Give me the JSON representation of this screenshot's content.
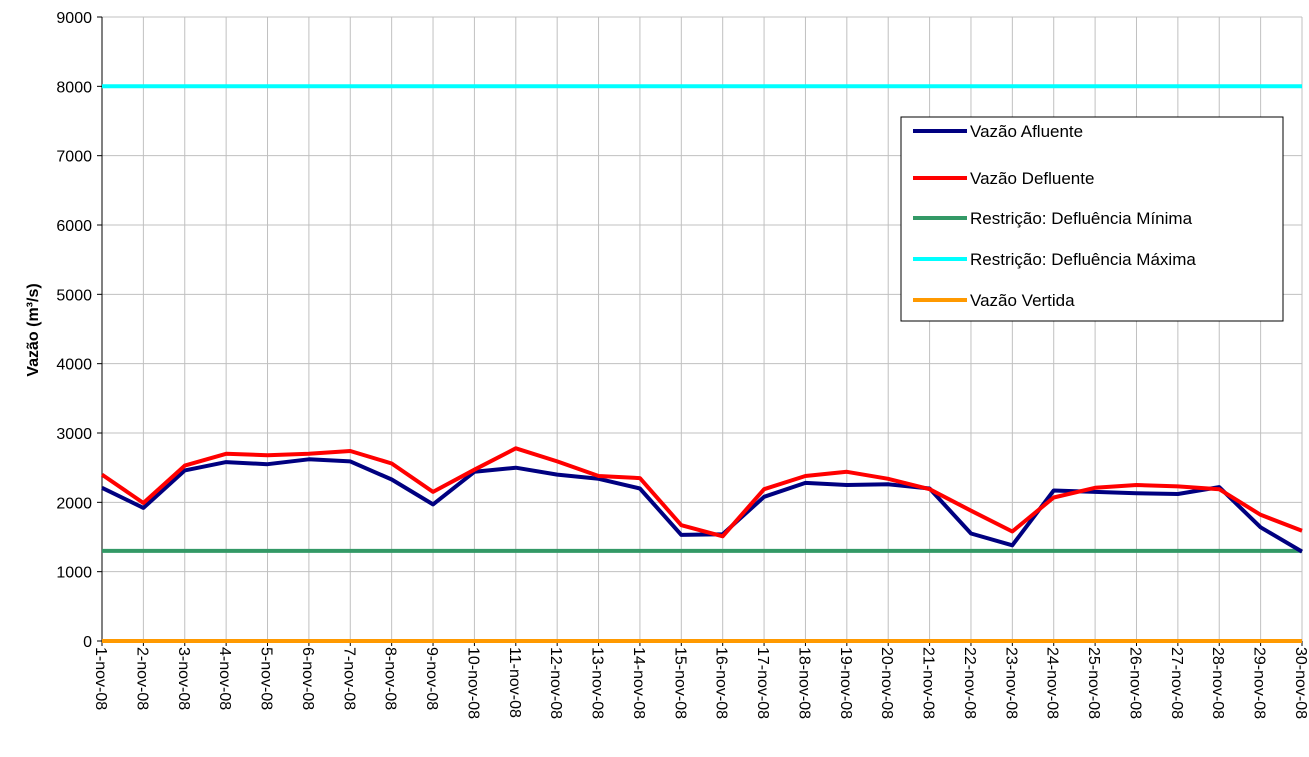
{
  "chart_data": {
    "type": "line",
    "title": "",
    "xlabel": "",
    "ylabel": "Vazão (m³/s)",
    "ylim": [
      0,
      9000
    ],
    "yticks": [
      "0",
      "1000",
      "2000",
      "3000",
      "4000",
      "5000",
      "6000",
      "7000",
      "8000",
      "9000"
    ],
    "grid": true,
    "legend_position": "right",
    "categories": [
      "1-nov-08",
      "2-nov-08",
      "3-nov-08",
      "4-nov-08",
      "5-nov-08",
      "6-nov-08",
      "7-nov-08",
      "8-nov-08",
      "9-nov-08",
      "10-nov-08",
      "11-nov-08",
      "12-nov-08",
      "13-nov-08",
      "14-nov-08",
      "15-nov-08",
      "16-nov-08",
      "17-nov-08",
      "18-nov-08",
      "19-nov-08",
      "20-nov-08",
      "21-nov-08",
      "22-nov-08",
      "23-nov-08",
      "24-nov-08",
      "25-nov-08",
      "26-nov-08",
      "27-nov-08",
      "28-nov-08",
      "29-nov-08",
      "30-nov-08"
    ],
    "series": [
      {
        "name": "Vazão Afluente",
        "color": "#000080",
        "values": [
          2210,
          1920,
          2460,
          2580,
          2550,
          2620,
          2590,
          2330,
          1970,
          2440,
          2500,
          2400,
          2340,
          2200,
          1530,
          1540,
          2080,
          2280,
          2250,
          2260,
          2200,
          1550,
          1380,
          2170,
          2150,
          2130,
          2120,
          2220,
          1640,
          1290
        ]
      },
      {
        "name": "Vazão Defluente",
        "color": "#ff0000",
        "values": [
          2400,
          1990,
          2530,
          2700,
          2680,
          2700,
          2740,
          2560,
          2150,
          2470,
          2780,
          2590,
          2380,
          2350,
          1670,
          1510,
          2190,
          2380,
          2440,
          2340,
          2190,
          1880,
          1580,
          2070,
          2210,
          2250,
          2230,
          2190,
          1820,
          1590
        ]
      },
      {
        "name": "Restrição: Defluência Mínima",
        "color": "#339966",
        "values": [
          1300,
          1300,
          1300,
          1300,
          1300,
          1300,
          1300,
          1300,
          1300,
          1300,
          1300,
          1300,
          1300,
          1300,
          1300,
          1300,
          1300,
          1300,
          1300,
          1300,
          1300,
          1300,
          1300,
          1300,
          1300,
          1300,
          1300,
          1300,
          1300,
          1300
        ]
      },
      {
        "name": "Restrição: Defluência Máxima",
        "color": "#00ffff",
        "values": [
          8000,
          8000,
          8000,
          8000,
          8000,
          8000,
          8000,
          8000,
          8000,
          8000,
          8000,
          8000,
          8000,
          8000,
          8000,
          8000,
          8000,
          8000,
          8000,
          8000,
          8000,
          8000,
          8000,
          8000,
          8000,
          8000,
          8000,
          8000,
          8000,
          8000
        ]
      },
      {
        "name": "Vazão Vertida",
        "color": "#ff9900",
        "values": [
          0,
          0,
          0,
          0,
          0,
          0,
          0,
          0,
          0,
          0,
          0,
          0,
          0,
          0,
          0,
          0,
          0,
          0,
          0,
          0,
          0,
          0,
          0,
          0,
          0,
          0,
          0,
          0,
          0,
          0
        ]
      }
    ]
  }
}
